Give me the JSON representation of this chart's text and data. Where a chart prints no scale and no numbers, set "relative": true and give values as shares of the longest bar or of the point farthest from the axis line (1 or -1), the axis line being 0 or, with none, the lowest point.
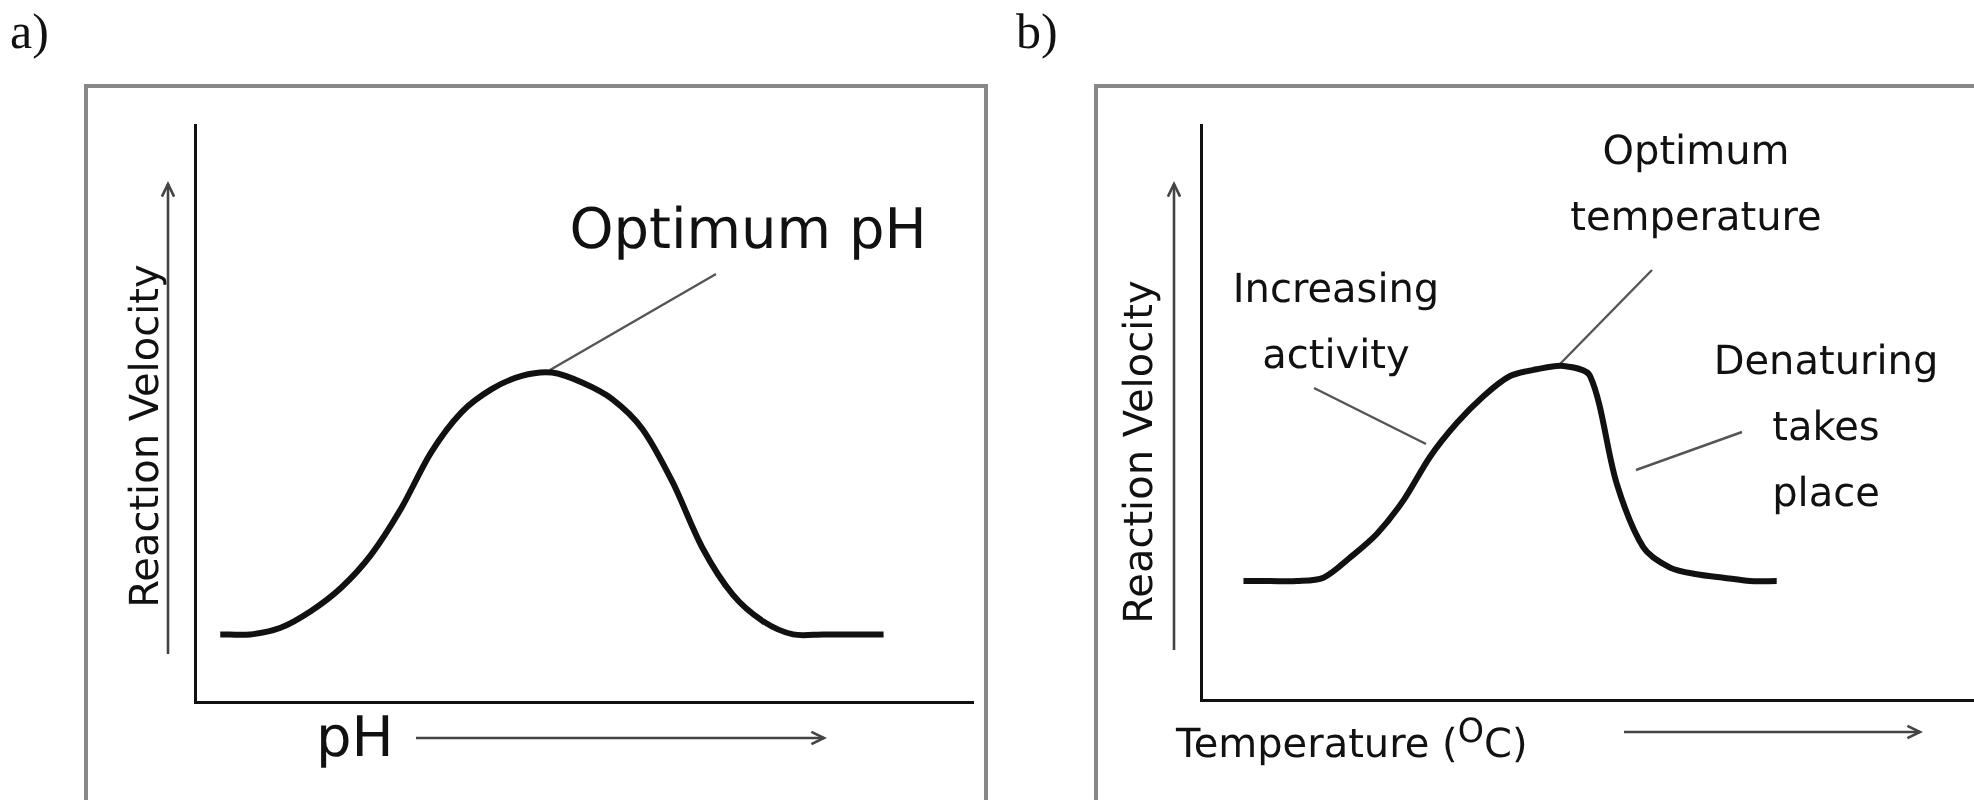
{
  "chart_data": [
    {
      "type": "line",
      "title": "a)",
      "xlabel": "pH",
      "ylabel": "Reaction Velocity",
      "relative": true,
      "color": "#111111",
      "categories": [
        null,
        null,
        null,
        null,
        null,
        null,
        null,
        null,
        null,
        null,
        null,
        null,
        null,
        null,
        null,
        null,
        null,
        null,
        null,
        null,
        null,
        null,
        null
      ],
      "values": [
        0.21,
        0.21,
        0.23,
        0.28,
        0.35,
        0.45,
        0.59,
        0.76,
        0.88,
        0.95,
        0.99,
        1,
        0.97,
        0.92,
        0.83,
        0.67,
        0.47,
        0.33,
        0.25,
        0.21,
        0.21,
        0.21,
        0.21
      ],
      "annotations": [
        "Optimum pH"
      ]
    },
    {
      "type": "line",
      "title": "b)",
      "xlabel": "Temperature ($^{O}$C)",
      "ylabel": "Reaction Velocity",
      "relative": true,
      "color": "#111111",
      "categories": [
        null,
        null,
        null,
        null,
        null,
        null,
        null,
        null,
        null,
        null,
        null,
        null,
        null,
        null,
        null,
        null,
        null,
        null,
        null,
        null,
        null
      ],
      "values": [
        0.36,
        0.36,
        0.36,
        0.37,
        0.43,
        0.5,
        0.6,
        0.73,
        0.83,
        0.91,
        0.97,
        0.99,
        1,
        0.97,
        0.65,
        0.46,
        0.4,
        0.38,
        0.37,
        0.36,
        0.36
      ],
      "annotations": [
        "Optimum temperature",
        "Increasing activity",
        "Denaturing takes place"
      ]
    }
  ]
}
